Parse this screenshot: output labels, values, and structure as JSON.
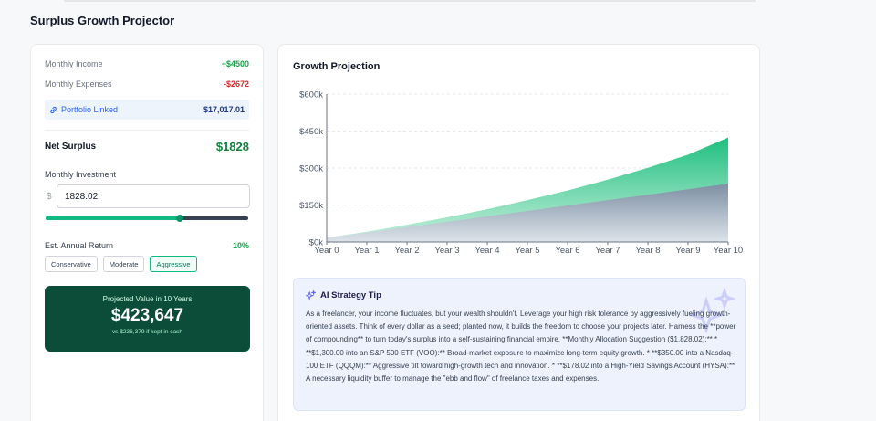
{
  "page": {
    "title": "Surplus Growth Projector"
  },
  "summary": {
    "income_label": "Monthly Income",
    "income_value": "+$4500",
    "expenses_label": "Monthly Expenses",
    "expenses_value": "-$2672",
    "portfolio_label": "Portfolio Linked",
    "portfolio_value": "$17,017.01",
    "net_label": "Net Surplus",
    "net_value": "$1828"
  },
  "investment": {
    "label": "Monthly Investment",
    "currency": "$",
    "value": "1828.02",
    "slider_fraction": 0.66
  },
  "return": {
    "label": "Est. Annual Return",
    "value": "10%",
    "options": [
      "Conservative",
      "Moderate",
      "Aggressive"
    ],
    "selected": "Aggressive"
  },
  "projection": {
    "title": "Projected Value in 10 Years",
    "value": "$423,647",
    "note": "vs $236,379 if kept in cash"
  },
  "chart_title": "Growth Projection",
  "chart_data": {
    "type": "area",
    "title": "Growth Projection",
    "xlabel": "",
    "ylabel": "",
    "categories": [
      "Year 0",
      "Year 1",
      "Year 2",
      "Year 3",
      "Year 4",
      "Year 5",
      "Year 6",
      "Year 7",
      "Year 8",
      "Year 9",
      "Year 10"
    ],
    "y_ticks": [
      "$0k",
      "$150k",
      "$300k",
      "$450k",
      "$600k"
    ],
    "ylim": [
      0,
      600000
    ],
    "grid": true,
    "series": [
      {
        "values": [
          17000,
          42000,
          70000,
          100000,
          133000,
          170000,
          209000,
          253000,
          301000,
          354000,
          423647
        ],
        "color": "#34c48c"
      },
      {
        "values": [
          17000,
          38000,
          60000,
          82000,
          104000,
          126000,
          148000,
          170000,
          192000,
          214000,
          236379
        ],
        "color": "#8a9aaa"
      }
    ]
  },
  "tip": {
    "title": "AI Strategy Tip",
    "text": "As a freelancer, your income fluctuates, but your wealth shouldn't. Leverage your high risk tolerance by aggressively fueling growth-oriented assets. Think of every dollar as a seed; planted now, it builds the freedom to choose your projects later. Harness the **power of compounding** to turn today's surplus into a self-sustaining financial empire. **Monthly Allocation Suggestion ($1,828.02):** * **$1,300.00 into an S&P 500 ETF (VOO):** Broad-market exposure to maximize long-term equity growth. * **$350.00 into a Nasdaq-100 ETF (QQQM):** Aggressive tilt toward high-growth tech and innovation. * **$178.02 into a High-Yield Savings Account (HYSA):** A necessary liquidity buffer to manage the \"ebb and flow\" of freelance taxes and expenses."
  },
  "colors": {
    "accent": "#10b981",
    "dark_green": "#0b4d38",
    "negative": "#dc2626",
    "link": "#2563eb"
  }
}
